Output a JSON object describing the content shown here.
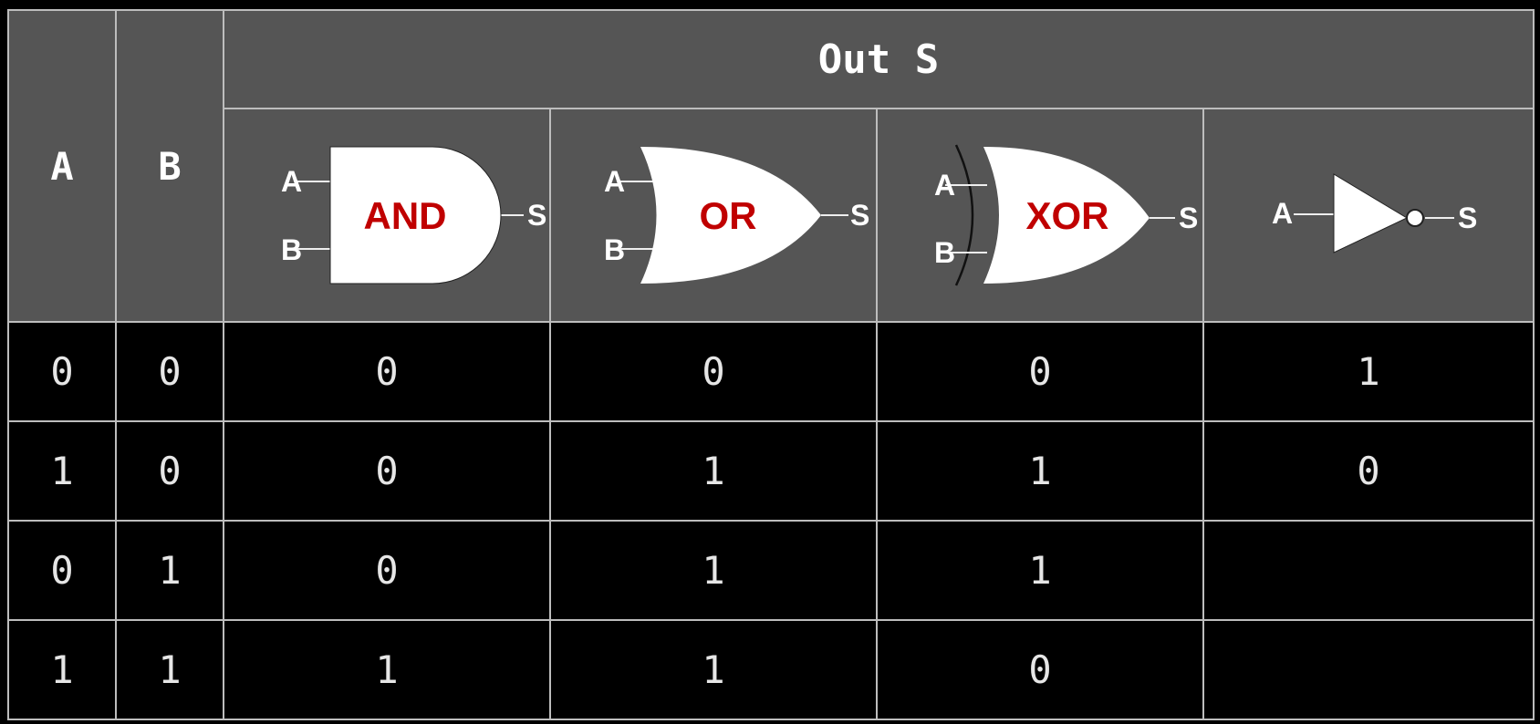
{
  "header": {
    "a_label": "A",
    "b_label": "B",
    "output_title": "Out S"
  },
  "gates": [
    {
      "name": "AND",
      "pins": [
        "A",
        "B",
        "S"
      ]
    },
    {
      "name": "OR",
      "pins": [
        "A",
        "B",
        "S"
      ]
    },
    {
      "name": "XOR",
      "pins": [
        "A",
        "B",
        "S"
      ]
    },
    {
      "name": "",
      "pins": [
        "A",
        "S"
      ]
    }
  ],
  "colors": {
    "header_bg": "#555555",
    "body_bg": "#000000",
    "grid": "#bdbdbd",
    "gate_label": "#c00000"
  },
  "rows": [
    {
      "a": "0",
      "b": "0",
      "and": "0",
      "or": "0",
      "xor": "0",
      "not": "1"
    },
    {
      "a": "1",
      "b": "0",
      "and": "0",
      "or": "1",
      "xor": "1",
      "not": "0"
    },
    {
      "a": "0",
      "b": "1",
      "and": "0",
      "or": "1",
      "xor": "1",
      "not": ""
    },
    {
      "a": "1",
      "b": "1",
      "and": "1",
      "or": "1",
      "xor": "0",
      "not": ""
    }
  ]
}
